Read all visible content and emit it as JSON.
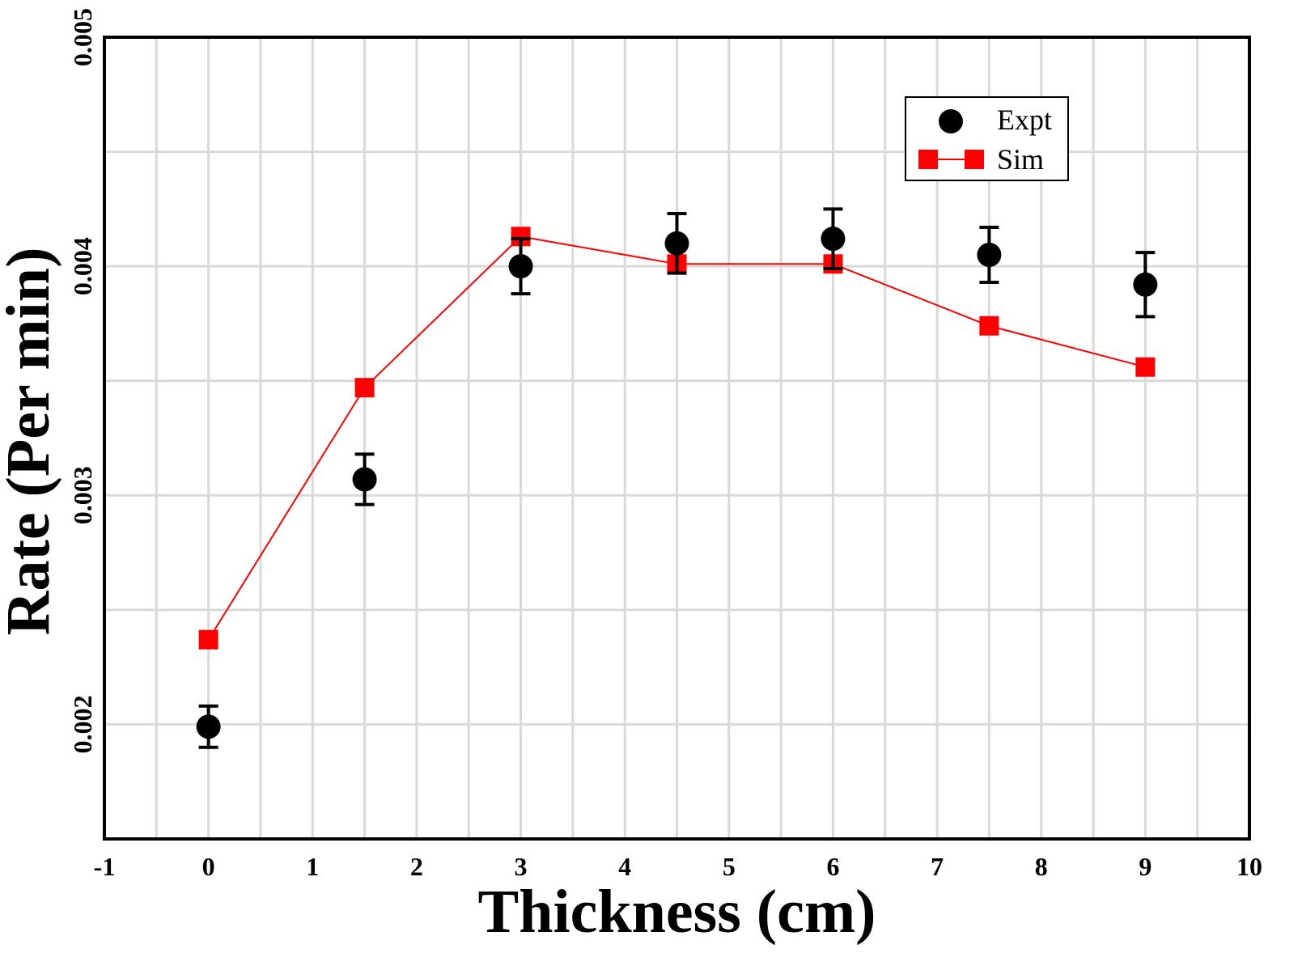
{
  "chart_data": {
    "type": "scatter",
    "title": "",
    "xlabel": "Thickness (cm)",
    "ylabel": "Rate (Per min)",
    "xlim": [
      -1,
      10
    ],
    "ylim": [
      0.0015,
      0.005
    ],
    "x_ticks": [
      -1,
      0,
      1,
      2,
      3,
      4,
      5,
      6,
      7,
      8,
      9,
      10
    ],
    "x_tick_labels": [
      "-1",
      "0",
      "1",
      "2",
      "3",
      "4",
      "5",
      "6",
      "7",
      "8",
      "9",
      "10"
    ],
    "y_ticks": [
      0.002,
      0.003,
      0.004,
      0.005
    ],
    "y_tick_labels": [
      "0.002",
      "0.003",
      "0.004",
      "0.005"
    ],
    "grid": true,
    "legend_position": "top-right",
    "series": [
      {
        "name": "Expt",
        "kind": "points-with-errorbars",
        "color": "#000000",
        "marker": "circle",
        "x": [
          0,
          1.5,
          3,
          4.5,
          6,
          7.5,
          9
        ],
        "y": [
          0.00199,
          0.00307,
          0.004,
          0.0041,
          0.00412,
          0.00405,
          0.00392
        ],
        "err": [
          9e-05,
          0.00011,
          0.00012,
          0.00013,
          0.00013,
          0.00012,
          0.00014
        ]
      },
      {
        "name": "Sim",
        "kind": "line-with-markers",
        "color": "#ff0000",
        "marker": "square",
        "x": [
          0,
          1.5,
          3,
          4.5,
          6,
          7.5,
          9
        ],
        "y": [
          0.00237,
          0.00347,
          0.00413,
          0.00401,
          0.00401,
          0.00374,
          0.00356
        ]
      }
    ]
  }
}
